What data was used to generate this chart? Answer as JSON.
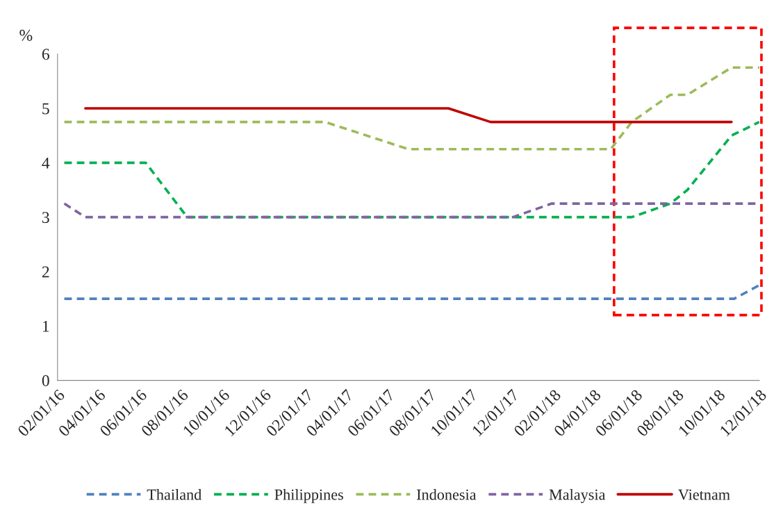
{
  "chart_data": {
    "type": "line",
    "ylabel": "%",
    "ylim": [
      0,
      6
    ],
    "yticks": [
      0,
      1,
      2,
      3,
      4,
      5,
      6
    ],
    "xlim": [
      "2016-02-01",
      "2018-12-01"
    ],
    "xticks": [
      {
        "value": "2016-02-01",
        "label": "02/01/16"
      },
      {
        "value": "2016-04-01",
        "label": "04/01/16"
      },
      {
        "value": "2016-06-01",
        "label": "06/01/16"
      },
      {
        "value": "2016-08-01",
        "label": "08/01/16"
      },
      {
        "value": "2016-10-01",
        "label": "10/01/16"
      },
      {
        "value": "2016-12-01",
        "label": "12/01/16"
      },
      {
        "value": "2017-02-01",
        "label": "02/01/17"
      },
      {
        "value": "2017-04-01",
        "label": "04/01/17"
      },
      {
        "value": "2017-06-01",
        "label": "06/01/17"
      },
      {
        "value": "2017-08-01",
        "label": "08/01/17"
      },
      {
        "value": "2017-10-01",
        "label": "10/01/17"
      },
      {
        "value": "2017-12-01",
        "label": "12/01/17"
      },
      {
        "value": "2018-02-01",
        "label": "02/01/18"
      },
      {
        "value": "2018-04-01",
        "label": "04/01/18"
      },
      {
        "value": "2018-06-01",
        "label": "06/01/18"
      },
      {
        "value": "2018-08-01",
        "label": "08/01/18"
      },
      {
        "value": "2018-10-01",
        "label": "10/01/18"
      },
      {
        "value": "2018-12-01",
        "label": "12/01/18"
      }
    ],
    "grid": false,
    "legend": "bottom",
    "marker": "none",
    "series": [
      {
        "name": "Thailand",
        "color": "#4f81bd",
        "line_style": "dashed",
        "x": [
          "2016-02-11",
          "2018-10-25",
          "2018-12-01"
        ],
        "values": [
          1.5,
          1.5,
          1.75
        ]
      },
      {
        "name": "Philippines",
        "color": "#00b050",
        "line_style": "dashed",
        "x": [
          "2016-02-11",
          "2016-06-10",
          "2016-08-10",
          "2018-05-27",
          "2018-07-23",
          "2018-08-17",
          "2018-10-21",
          "2018-12-01"
        ],
        "values": [
          4,
          4,
          3,
          3,
          3.25,
          3.5,
          4.5,
          4.75
        ]
      },
      {
        "name": "Indonesia",
        "color": "#9bbb59",
        "line_style": "dashed",
        "x": [
          "2016-02-11",
          "2017-03-01",
          "2017-07-02",
          "2018-04-26",
          "2018-05-27",
          "2018-07-23",
          "2018-08-17",
          "2018-10-21",
          "2018-12-01"
        ],
        "values": [
          4.75,
          4.75,
          4.25,
          4.25,
          4.75,
          5.25,
          5.25,
          5.75,
          5.75
        ]
      },
      {
        "name": "Malaysia",
        "color": "#8064a2",
        "line_style": "dashed",
        "x": [
          "2016-02-11",
          "2016-03-13",
          "2017-12-03",
          "2018-01-29",
          "2018-12-01"
        ],
        "values": [
          3.25,
          3,
          3,
          3.25,
          3.25
        ]
      },
      {
        "name": "Vietnam",
        "color": "#c00000",
        "line_style": "solid",
        "x": [
          "2016-03-13",
          "2017-08-30",
          "2017-10-31",
          "2018-10-21"
        ],
        "values": [
          5,
          5,
          4.75,
          4.75
        ]
      }
    ]
  }
}
